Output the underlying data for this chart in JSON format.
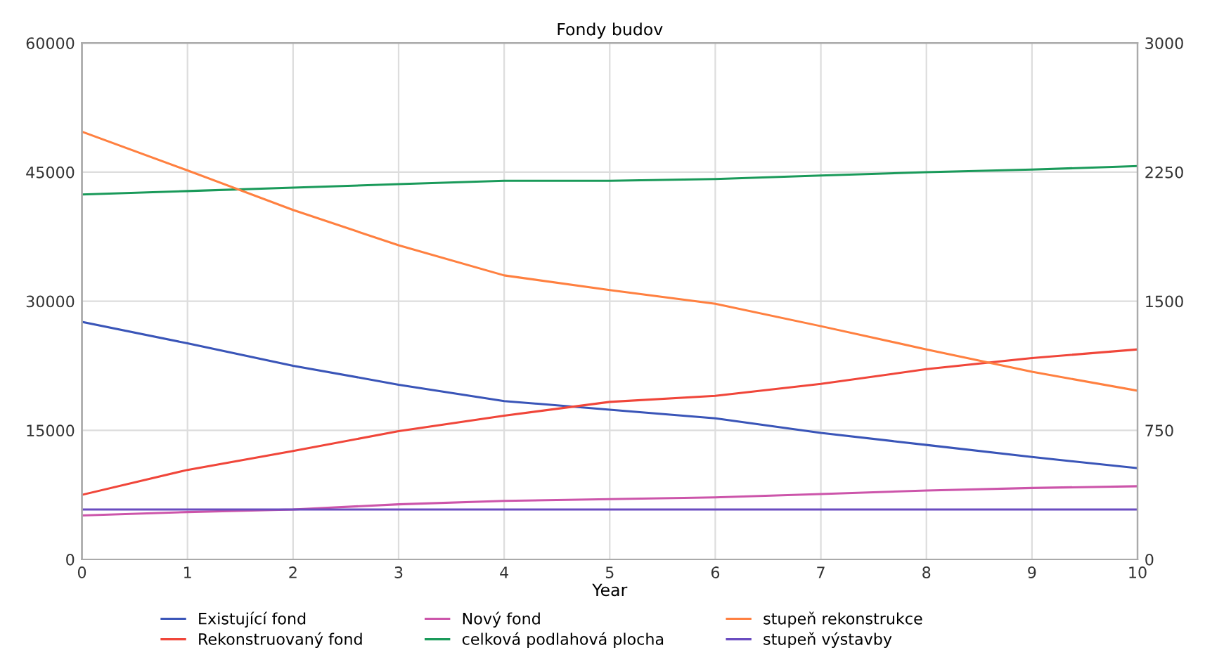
{
  "chart_data": {
    "type": "line",
    "title": "Fondy budov",
    "xlabel": "Year",
    "x": [
      0,
      1,
      2,
      3,
      4,
      5,
      6,
      7,
      8,
      9,
      10
    ],
    "series": [
      {
        "name": "Existující fond",
        "color": "#3a55b8",
        "values": [
          27600,
          25100,
          22500,
          20300,
          18400,
          17400,
          16400,
          14700,
          13300,
          11900,
          10600
        ]
      },
      {
        "name": "Rekonstruovaný fond",
        "color": "#f0463a",
        "values": [
          7500,
          10400,
          12600,
          14900,
          16700,
          18300,
          19000,
          20400,
          22100,
          23400,
          24400
        ]
      },
      {
        "name": "Nový fond",
        "color": "#cc55aa",
        "values": [
          5100,
          5500,
          5800,
          6400,
          6800,
          7000,
          7200,
          7600,
          8000,
          8300,
          8500
        ]
      },
      {
        "name": "celková podlahová plocha",
        "color": "#1a9a5a",
        "values": [
          42400,
          42800,
          43200,
          43600,
          44000,
          44000,
          44200,
          44600,
          45000,
          45300,
          45700
        ]
      },
      {
        "name": "stupeň rekonstrukce",
        "color": "#ff8040",
        "values": [
          49700,
          45200,
          40600,
          36500,
          33000,
          31300,
          29700,
          27100,
          24400,
          21800,
          19600
        ]
      },
      {
        "name": "stupeň výstavby",
        "color": "#6a4cc0",
        "values": [
          5800,
          5800,
          5800,
          5800,
          5800,
          5800,
          5800,
          5800,
          5800,
          5800,
          5800
        ]
      }
    ],
    "xlim": [
      0,
      10
    ],
    "xticks": [
      0,
      1,
      2,
      3,
      4,
      5,
      6,
      7,
      8,
      9,
      10
    ],
    "ylim": [
      0,
      60000
    ],
    "yticks": [
      0,
      15000,
      30000,
      45000,
      60000
    ],
    "y2lim": [
      0,
      3000
    ],
    "y2ticks": [
      0,
      750,
      1500,
      2250,
      3000
    ],
    "grid": true,
    "legend": "bottom",
    "line_style": "solid"
  }
}
